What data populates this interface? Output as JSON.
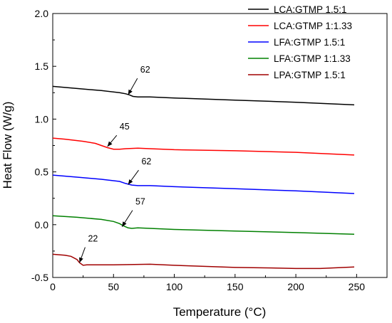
{
  "chart_data": {
    "type": "line",
    "title": "",
    "xlabel": "Temperature (°C)",
    "ylabel": "Heat Flow (W/g)",
    "xlim": [
      0,
      275
    ],
    "ylim": [
      -0.5,
      2.0
    ],
    "xticks": [
      0,
      50,
      100,
      150,
      200,
      250
    ],
    "yticks": [
      -0.5,
      0.0,
      0.5,
      1.0,
      1.5,
      2.0
    ],
    "xtick_labels": [
      "0",
      "50",
      "100",
      "150",
      "200",
      "250"
    ],
    "ytick_labels": [
      "-0.5",
      "0.0",
      "0.5",
      "1.0",
      "1.5",
      "2.0"
    ],
    "grid": false,
    "legend_position": "top-right",
    "series": [
      {
        "name": "LCA:GTMP 1.5:1",
        "color": "#000000",
        "x": [
          0,
          20,
          40,
          55,
          60,
          63,
          66,
          70,
          80,
          100,
          150,
          200,
          248
        ],
        "y": [
          1.31,
          1.29,
          1.27,
          1.25,
          1.24,
          1.23,
          1.215,
          1.21,
          1.21,
          1.2,
          1.18,
          1.16,
          1.135
        ]
      },
      {
        "name": "LCA:GTMP 1:1.33",
        "color": "#ff0000",
        "x": [
          0,
          10,
          25,
          35,
          40,
          45,
          50,
          55,
          60,
          70,
          80,
          100,
          150,
          200,
          248
        ],
        "y": [
          0.82,
          0.81,
          0.79,
          0.77,
          0.75,
          0.73,
          0.715,
          0.715,
          0.72,
          0.725,
          0.72,
          0.71,
          0.7,
          0.685,
          0.66
        ]
      },
      {
        "name": "LFA:GTMP 1.5:1",
        "color": "#0000ff",
        "x": [
          0,
          20,
          40,
          55,
          60,
          65,
          70,
          80,
          100,
          150,
          200,
          248
        ],
        "y": [
          0.47,
          0.45,
          0.43,
          0.41,
          0.39,
          0.375,
          0.37,
          0.37,
          0.36,
          0.34,
          0.32,
          0.295
        ]
      },
      {
        "name": "LFA:GTMP 1:1.33",
        "color": "#008000",
        "x": [
          0,
          20,
          40,
          50,
          55,
          58,
          62,
          65,
          70,
          80,
          100,
          150,
          200,
          248
        ],
        "y": [
          0.085,
          0.07,
          0.05,
          0.03,
          0.01,
          -0.01,
          -0.03,
          -0.035,
          -0.03,
          -0.035,
          -0.045,
          -0.06,
          -0.075,
          -0.09
        ]
      },
      {
        "name": "LPA:GTMP 1.5:1",
        "color": "#a00000",
        "x": [
          0,
          10,
          15,
          20,
          22,
          25,
          28,
          32,
          50,
          80,
          100,
          150,
          180,
          200,
          220,
          248
        ],
        "y": [
          -0.28,
          -0.29,
          -0.3,
          -0.33,
          -0.36,
          -0.385,
          -0.38,
          -0.38,
          -0.38,
          -0.375,
          -0.385,
          -0.405,
          -0.41,
          -0.415,
          -0.415,
          -0.4
        ]
      }
    ],
    "annotations": [
      {
        "text": "62",
        "x": 62,
        "y": 1.23,
        "text_x": 72,
        "text_y": 1.44
      },
      {
        "text": "45",
        "x": 45,
        "y": 0.74,
        "text_x": 55,
        "text_y": 0.9
      },
      {
        "text": "62",
        "x": 62,
        "y": 0.38,
        "text_x": 73,
        "text_y": 0.57
      },
      {
        "text": "57",
        "x": 57,
        "y": -0.02,
        "text_x": 68,
        "text_y": 0.19
      },
      {
        "text": "22",
        "x": 22,
        "y": -0.36,
        "text_x": 29,
        "text_y": -0.16
      }
    ]
  }
}
